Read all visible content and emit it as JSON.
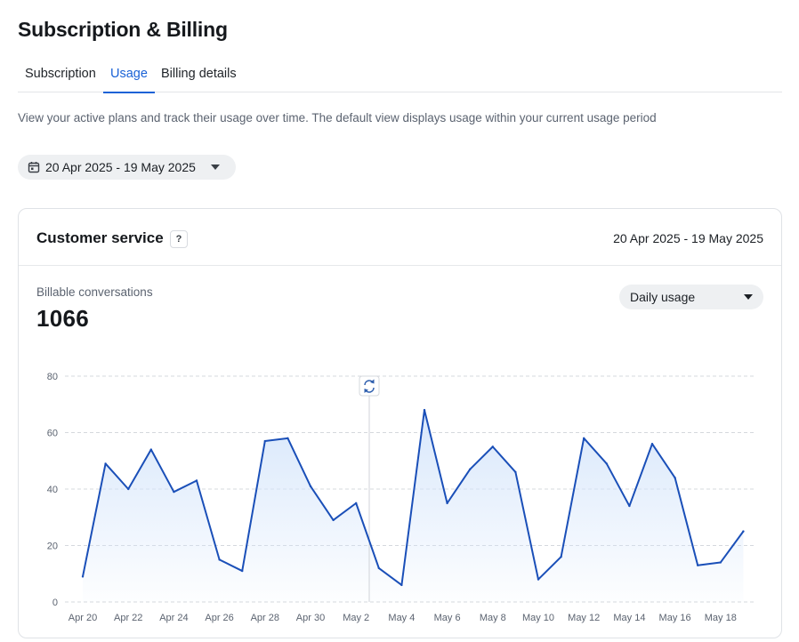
{
  "page": {
    "title": "Subscription & Billing"
  },
  "tabs": [
    {
      "label": "Subscription",
      "active": false
    },
    {
      "label": "Usage",
      "active": true
    },
    {
      "label": "Billing details",
      "active": false
    }
  ],
  "description": "View your active plans and track their usage over time. The default view displays usage within your current usage period",
  "date_picker": {
    "icon": "calendar-icon",
    "value": "20 Apr 2025 - 19 May 2025"
  },
  "card": {
    "title": "Customer service",
    "help": "?",
    "range": "20 Apr 2025 - 19 May 2025",
    "metric_label": "Billable conversations",
    "metric_value": "1066",
    "usage_select": {
      "value": "Daily usage"
    }
  },
  "colors": {
    "accent": "#1a62d6",
    "line": "#1a4fb8",
    "fill": "#d6e6fb"
  },
  "chart_data": {
    "type": "area",
    "x": [
      "Apr 20",
      "Apr 21",
      "Apr 22",
      "Apr 23",
      "Apr 24",
      "Apr 25",
      "Apr 26",
      "Apr 27",
      "Apr 28",
      "Apr 29",
      "Apr 30",
      "May 1",
      "May 2",
      "May 3",
      "May 4",
      "May 5",
      "May 6",
      "May 7",
      "May 8",
      "May 9",
      "May 10",
      "May 11",
      "May 12",
      "May 13",
      "May 14",
      "May 15",
      "May 16",
      "May 17",
      "May 18",
      "May 19"
    ],
    "x_tick_labels": [
      "Apr 20",
      "Apr 22",
      "Apr 24",
      "Apr 26",
      "Apr 28",
      "Apr 30",
      "May 2",
      "May 4",
      "May 6",
      "May 8",
      "May 10",
      "May 12",
      "May 14",
      "May 16",
      "May 18"
    ],
    "values": [
      9,
      49,
      40,
      54,
      39,
      43,
      15,
      11,
      57,
      58,
      41,
      29,
      35,
      12,
      6,
      68,
      35,
      47,
      55,
      46,
      8,
      16,
      58,
      49,
      34,
      56,
      44,
      13,
      14,
      25
    ],
    "y_ticks": [
      0,
      20,
      40,
      60,
      80
    ],
    "ylim": [
      0,
      80
    ],
    "grid": true,
    "cursor_index": 13
  }
}
